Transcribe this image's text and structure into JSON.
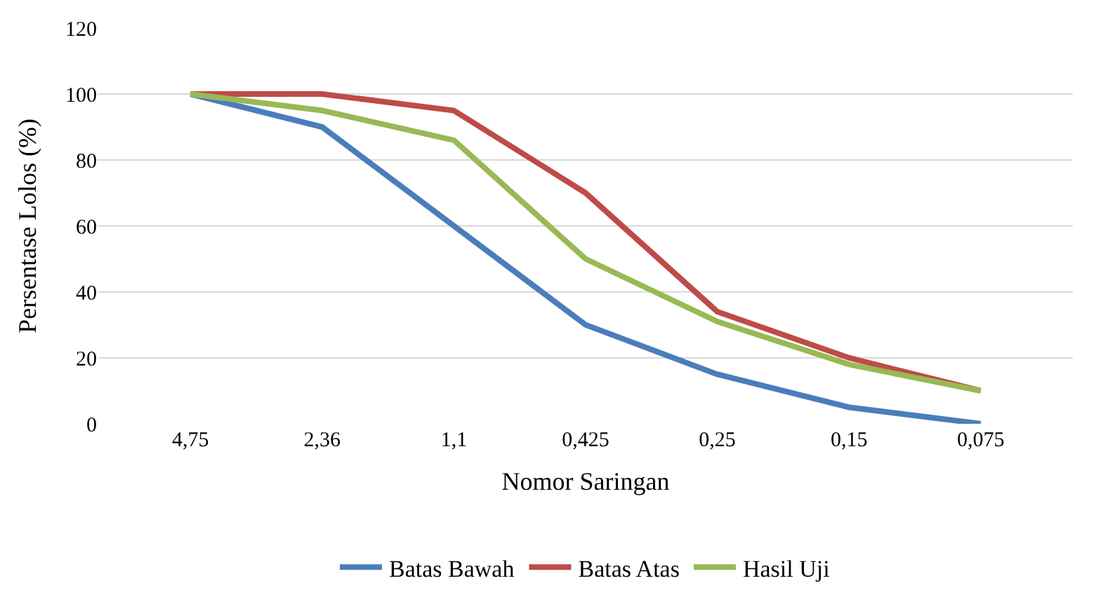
{
  "chart_data": {
    "type": "line",
    "xlabel": "Nomor Saringan",
    "ylabel": "Persentase Lolos (%)",
    "categories": [
      "4,75",
      "2,36",
      "1,1",
      "0,425",
      "0,25",
      "0,15",
      "0,075"
    ],
    "series": [
      {
        "name": "Batas Bawah",
        "color": "#4a7ebb",
        "values": [
          100,
          90,
          60,
          30,
          15,
          5,
          0
        ]
      },
      {
        "name": "Batas Atas",
        "color": "#be4b48",
        "values": [
          100,
          100,
          95,
          70,
          34,
          20,
          10
        ]
      },
      {
        "name": "Hasil Uji",
        "color": "#98b954",
        "values": [
          100,
          95,
          86,
          50,
          31,
          18,
          10
        ]
      }
    ],
    "ylim": [
      0,
      120
    ],
    "yticks": [
      0,
      20,
      40,
      60,
      80,
      100,
      120
    ],
    "grid": "y",
    "legend": "bottom",
    "marker": "none",
    "line_style": "solid"
  }
}
